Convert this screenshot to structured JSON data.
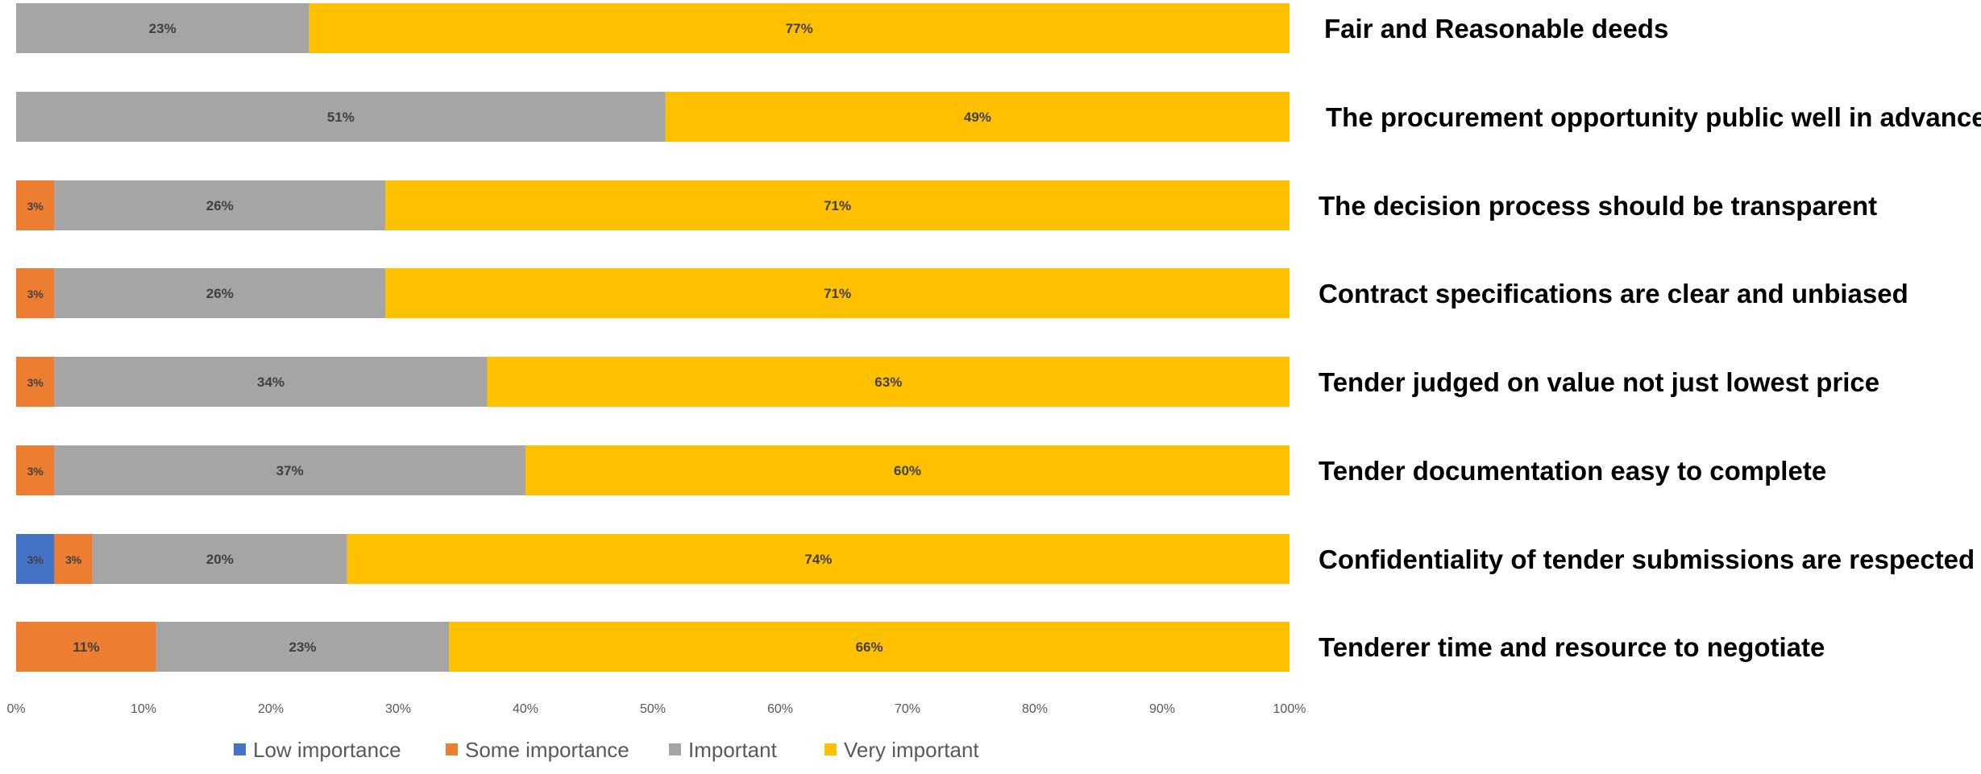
{
  "chart_data": {
    "type": "bar",
    "orientation": "horizontal",
    "stacked": "percent",
    "categories": [
      "Fair and Reasonable deeds",
      "The procurement opportunity public well in advance",
      "The decision process should be transparent",
      "Contract specifications are clear and unbiased",
      "Tender judged on value not just lowest price",
      "Tender documentation easy to complete",
      "Confidentiality of tender submissions are respected",
      "Tenderer time and resource to negotiate"
    ],
    "series": [
      {
        "name": "Low importance",
        "color": "#4472C4",
        "values": [
          0,
          0,
          0,
          0,
          0,
          0,
          3,
          0
        ],
        "labels": [
          "",
          "",
          "",
          "",
          "",
          "",
          "3%",
          ""
        ]
      },
      {
        "name": "Some importance",
        "color": "#ED7D31",
        "values": [
          0,
          0,
          3,
          3,
          3,
          3,
          3,
          11
        ],
        "labels": [
          "",
          "",
          "3%",
          "3%",
          "3%",
          "3%",
          "3%",
          "11%"
        ]
      },
      {
        "name": "Important",
        "color": "#A5A5A5",
        "values": [
          23,
          51,
          26,
          26,
          34,
          37,
          20,
          23
        ],
        "labels": [
          "23%",
          "51%",
          "26%",
          "26%",
          "34%",
          "37%",
          "20%",
          "23%"
        ]
      },
      {
        "name": "Very important",
        "color": "#FFC000",
        "values": [
          77,
          49,
          71,
          71,
          63,
          60,
          74,
          66
        ],
        "labels": [
          "77%",
          "49%",
          "71%",
          "71%",
          "63%",
          "60%",
          "74%",
          "66%"
        ]
      }
    ],
    "x_ticks": [
      "0%",
      "10%",
      "20%",
      "30%",
      "40%",
      "50%",
      "60%",
      "70%",
      "80%",
      "90%",
      "100%"
    ],
    "xlim": [
      0,
      100
    ],
    "grid": false,
    "legend_position": "bottom",
    "category_labels_position": "right"
  }
}
